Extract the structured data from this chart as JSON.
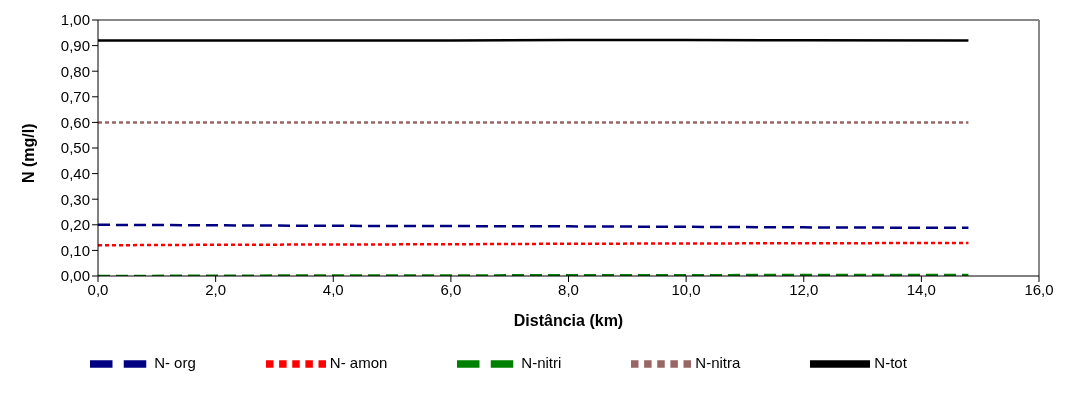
{
  "chart_data": {
    "type": "line",
    "xlabel": "Distância (km)",
    "ylabel": "N (mg/l)",
    "x": [
      0,
      2,
      4,
      6,
      8,
      10,
      12,
      14.8
    ],
    "series": [
      {
        "name": "N- org",
        "color": "#000080",
        "line_style": "dashed",
        "values": [
          0.2,
          0.198,
          0.196,
          0.195,
          0.194,
          0.192,
          0.19,
          0.188
        ]
      },
      {
        "name": "N- amon",
        "color": "#ff0000",
        "line_style": "dotted",
        "values": [
          0.12,
          0.122,
          0.123,
          0.124,
          0.126,
          0.127,
          0.128,
          0.129
        ]
      },
      {
        "name": "N-nitri",
        "color": "#008000",
        "line_style": "dashed",
        "values": [
          0.0,
          0.001,
          0.002,
          0.002,
          0.003,
          0.003,
          0.004,
          0.004
        ]
      },
      {
        "name": "N-nitra",
        "color": "#996666",
        "line_style": "dotted",
        "values": [
          0.6,
          0.6,
          0.6,
          0.6,
          0.6,
          0.6,
          0.6,
          0.6
        ]
      },
      {
        "name": "N-tot",
        "color": "#000000",
        "line_style": "solid",
        "values": [
          0.92,
          0.92,
          0.92,
          0.92,
          0.922,
          0.922,
          0.921,
          0.92
        ]
      }
    ],
    "xlim": [
      0,
      16
    ],
    "xticks": [
      {
        "value": 0,
        "label": "0,0"
      },
      {
        "value": 2,
        "label": "2,0"
      },
      {
        "value": 4,
        "label": "4,0"
      },
      {
        "value": 6,
        "label": "6,0"
      },
      {
        "value": 8,
        "label": "8,0"
      },
      {
        "value": 10,
        "label": "10,0"
      },
      {
        "value": 12,
        "label": "12,0"
      },
      {
        "value": 14,
        "label": "14,0"
      },
      {
        "value": 16,
        "label": "16,0"
      }
    ],
    "ylim": [
      0,
      1
    ],
    "yticks": [
      {
        "value": 0,
        "label": "0,00"
      },
      {
        "value": 0.1,
        "label": "0,10"
      },
      {
        "value": 0.2,
        "label": "0,20"
      },
      {
        "value": 0.3,
        "label": "0,30"
      },
      {
        "value": 0.4,
        "label": "0,40"
      },
      {
        "value": 0.5,
        "label": "0,50"
      },
      {
        "value": 0.6,
        "label": "0,60"
      },
      {
        "value": 0.7,
        "label": "0,70"
      },
      {
        "value": 0.8,
        "label": "0,80"
      },
      {
        "value": 0.9,
        "label": "0,90"
      },
      {
        "value": 1,
        "label": "1,00"
      }
    ],
    "grid": false,
    "legend": "bottom",
    "marker": "none"
  }
}
